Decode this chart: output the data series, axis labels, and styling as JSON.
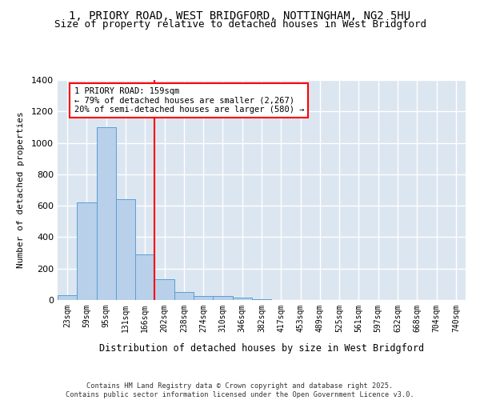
{
  "title1": "1, PRIORY ROAD, WEST BRIDGFORD, NOTTINGHAM, NG2 5HU",
  "title2": "Size of property relative to detached houses in West Bridgford",
  "xlabel": "Distribution of detached houses by size in West Bridgford",
  "ylabel": "Number of detached properties",
  "bar_labels": [
    "23sqm",
    "59sqm",
    "95sqm",
    "131sqm",
    "166sqm",
    "202sqm",
    "238sqm",
    "274sqm",
    "310sqm",
    "346sqm",
    "382sqm",
    "417sqm",
    "453sqm",
    "489sqm",
    "525sqm",
    "561sqm",
    "597sqm",
    "632sqm",
    "668sqm",
    "704sqm",
    "740sqm"
  ],
  "bar_values": [
    30,
    620,
    1100,
    640,
    290,
    130,
    50,
    25,
    25,
    15,
    5,
    0,
    0,
    0,
    0,
    0,
    0,
    0,
    0,
    0,
    0
  ],
  "bar_color": "#b8d0ea",
  "bar_edge_color": "#5a9fd4",
  "bg_color": "#dce6f1",
  "grid_color": "#ffffff",
  "vline_x": 4.5,
  "vline_color": "red",
  "annotation_text": "1 PRIORY ROAD: 159sqm\n← 79% of detached houses are smaller (2,267)\n20% of semi-detached houses are larger (580) →",
  "annotation_box_color": "white",
  "annotation_box_edge": "red",
  "ylim": [
    0,
    1400
  ],
  "yticks": [
    0,
    200,
    400,
    600,
    800,
    1000,
    1200,
    1400
  ],
  "footer": "Contains HM Land Registry data © Crown copyright and database right 2025.\nContains public sector information licensed under the Open Government Licence v3.0.",
  "title_fontsize": 10,
  "subtitle_fontsize": 9
}
